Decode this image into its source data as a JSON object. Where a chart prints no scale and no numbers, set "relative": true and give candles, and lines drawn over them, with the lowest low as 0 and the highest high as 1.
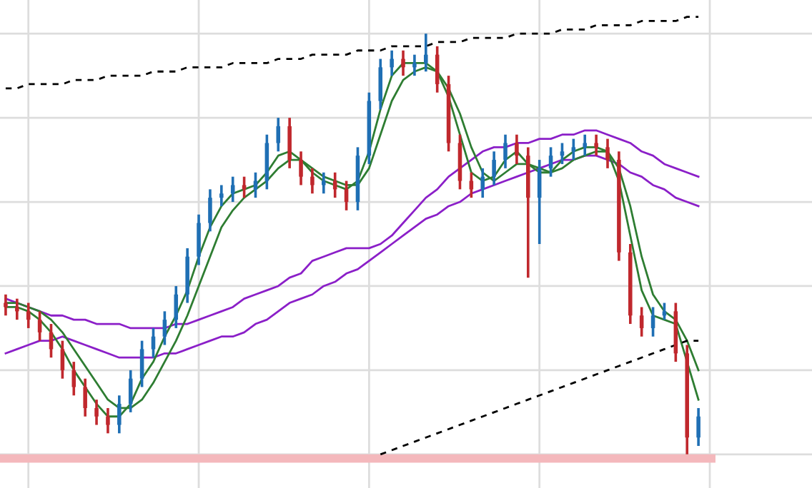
{
  "chart_data": {
    "type": "candlestick",
    "relative": true,
    "grid": true,
    "tick_labels": false,
    "categories": [
      null,
      null,
      null,
      null,
      null,
      null,
      null,
      null,
      null,
      null,
      null,
      null,
      null,
      null,
      null,
      null,
      null,
      null,
      null,
      null,
      null,
      null,
      null,
      null,
      null,
      null,
      null,
      null,
      null,
      null,
      null,
      null,
      null,
      null,
      null,
      null,
      null,
      null,
      null,
      null,
      null,
      null,
      null,
      null,
      null,
      null,
      null,
      null,
      null,
      null,
      null,
      null,
      null,
      null,
      null,
      null,
      null,
      null,
      null,
      null,
      null,
      null
    ],
    "ohlc": [
      [
        0.36,
        0.38,
        0.33,
        0.35
      ],
      [
        0.35,
        0.37,
        0.32,
        0.34
      ],
      [
        0.34,
        0.36,
        0.3,
        0.32
      ],
      [
        0.32,
        0.34,
        0.27,
        0.29
      ],
      [
        0.29,
        0.31,
        0.23,
        0.25
      ],
      [
        0.25,
        0.27,
        0.18,
        0.2
      ],
      [
        0.2,
        0.22,
        0.14,
        0.16
      ],
      [
        0.16,
        0.18,
        0.09,
        0.11
      ],
      [
        0.11,
        0.13,
        0.07,
        0.09
      ],
      [
        0.09,
        0.11,
        0.05,
        0.07
      ],
      [
        0.07,
        0.14,
        0.05,
        0.12
      ],
      [
        0.12,
        0.2,
        0.1,
        0.18
      ],
      [
        0.18,
        0.27,
        0.16,
        0.25
      ],
      [
        0.25,
        0.3,
        0.23,
        0.28
      ],
      [
        0.28,
        0.34,
        0.26,
        0.32
      ],
      [
        0.32,
        0.4,
        0.3,
        0.38
      ],
      [
        0.38,
        0.49,
        0.36,
        0.47
      ],
      [
        0.47,
        0.57,
        0.45,
        0.55
      ],
      [
        0.55,
        0.63,
        0.53,
        0.61
      ],
      [
        0.61,
        0.64,
        0.59,
        0.62
      ],
      [
        0.62,
        0.66,
        0.6,
        0.64
      ],
      [
        0.64,
        0.66,
        0.61,
        0.63
      ],
      [
        0.63,
        0.67,
        0.61,
        0.65
      ],
      [
        0.65,
        0.76,
        0.63,
        0.74
      ],
      [
        0.74,
        0.8,
        0.72,
        0.78
      ],
      [
        0.78,
        0.8,
        0.68,
        0.7
      ],
      [
        0.7,
        0.72,
        0.64,
        0.66
      ],
      [
        0.66,
        0.68,
        0.62,
        0.64
      ],
      [
        0.64,
        0.67,
        0.62,
        0.65
      ],
      [
        0.65,
        0.67,
        0.61,
        0.63
      ],
      [
        0.63,
        0.65,
        0.58,
        0.6
      ],
      [
        0.6,
        0.73,
        0.58,
        0.71
      ],
      [
        0.71,
        0.86,
        0.69,
        0.84
      ],
      [
        0.84,
        0.94,
        0.82,
        0.92
      ],
      [
        0.92,
        0.96,
        0.9,
        0.94
      ],
      [
        0.94,
        0.96,
        0.9,
        0.92
      ],
      [
        0.92,
        0.95,
        0.9,
        0.93
      ],
      [
        0.93,
        1.0,
        0.91,
        0.95
      ],
      [
        0.95,
        0.97,
        0.86,
        0.88
      ],
      [
        0.88,
        0.9,
        0.72,
        0.74
      ],
      [
        0.74,
        0.76,
        0.63,
        0.65
      ],
      [
        0.65,
        0.67,
        0.61,
        0.63
      ],
      [
        0.63,
        0.68,
        0.61,
        0.66
      ],
      [
        0.66,
        0.72,
        0.64,
        0.7
      ],
      [
        0.7,
        0.76,
        0.68,
        0.74
      ],
      [
        0.74,
        0.76,
        0.69,
        0.71
      ],
      [
        0.71,
        0.73,
        0.42,
        0.61
      ],
      [
        0.61,
        0.7,
        0.5,
        0.68
      ],
      [
        0.68,
        0.73,
        0.66,
        0.71
      ],
      [
        0.71,
        0.74,
        0.69,
        0.72
      ],
      [
        0.72,
        0.75,
        0.7,
        0.73
      ],
      [
        0.73,
        0.76,
        0.71,
        0.74
      ],
      [
        0.74,
        0.76,
        0.71,
        0.73
      ],
      [
        0.73,
        0.75,
        0.68,
        0.7
      ],
      [
        0.7,
        0.72,
        0.46,
        0.48
      ],
      [
        0.48,
        0.5,
        0.31,
        0.33
      ],
      [
        0.33,
        0.35,
        0.28,
        0.3
      ],
      [
        0.3,
        0.35,
        0.28,
        0.33
      ],
      [
        0.33,
        0.36,
        0.32,
        0.34
      ],
      [
        0.34,
        0.36,
        0.22,
        0.24
      ],
      [
        0.24,
        0.26,
        0.0,
        0.04
      ],
      [
        0.04,
        0.11,
        0.02,
        0.09
      ]
    ],
    "colors": [
      "#c0282d",
      "#c0282d",
      "#c0282d",
      "#c0282d",
      "#c0282d",
      "#c0282d",
      "#c0282d",
      "#c0282d",
      "#c0282d",
      "#c0282d",
      "#1f6fb4",
      "#1f6fb4",
      "#1f6fb4",
      "#1f6fb4",
      "#1f6fb4",
      "#1f6fb4",
      "#1f6fb4",
      "#1f6fb4",
      "#1f6fb4",
      "#1f6fb4",
      "#1f6fb4",
      "#c0282d",
      "#1f6fb4",
      "#1f6fb4",
      "#1f6fb4",
      "#c0282d",
      "#c0282d",
      "#c0282d",
      "#1f6fb4",
      "#c0282d",
      "#c0282d",
      "#1f6fb4",
      "#1f6fb4",
      "#1f6fb4",
      "#1f6fb4",
      "#c0282d",
      "#1f6fb4",
      "#1f6fb4",
      "#c0282d",
      "#c0282d",
      "#c0282d",
      "#c0282d",
      "#1f6fb4",
      "#1f6fb4",
      "#1f6fb4",
      "#c0282d",
      "#c0282d",
      "#1f6fb4",
      "#1f6fb4",
      "#1f6fb4",
      "#1f6fb4",
      "#1f6fb4",
      "#c0282d",
      "#c0282d",
      "#c0282d",
      "#c0282d",
      "#c0282d",
      "#1f6fb4",
      "#1f6fb4",
      "#c0282d",
      "#c0282d",
      "#1f6fb4"
    ],
    "series": [
      {
        "type": "line",
        "color": "#8b1fc8",
        "values": [
          0.37,
          0.36,
          0.35,
          0.34,
          0.33,
          0.33,
          0.32,
          0.32,
          0.31,
          0.31,
          0.31,
          0.3,
          0.3,
          0.3,
          0.3,
          0.31,
          0.31,
          0.32,
          0.33,
          0.34,
          0.35,
          0.37,
          0.38,
          0.39,
          0.4,
          0.42,
          0.43,
          0.46,
          0.47,
          0.48,
          0.49,
          0.49,
          0.49,
          0.5,
          0.52,
          0.55,
          0.58,
          0.61,
          0.63,
          0.66,
          0.68,
          0.7,
          0.72,
          0.73,
          0.73,
          0.74,
          0.74,
          0.75,
          0.75,
          0.76,
          0.76,
          0.77,
          0.77,
          0.76,
          0.75,
          0.74,
          0.72,
          0.71,
          0.69,
          0.68,
          0.67,
          0.66
        ]
      },
      {
        "type": "line",
        "color": "#8b1fc8",
        "values": [
          0.24,
          0.25,
          0.26,
          0.27,
          0.27,
          0.28,
          0.27,
          0.26,
          0.25,
          0.24,
          0.23,
          0.23,
          0.23,
          0.23,
          0.24,
          0.24,
          0.25,
          0.26,
          0.27,
          0.28,
          0.28,
          0.29,
          0.31,
          0.32,
          0.34,
          0.36,
          0.37,
          0.38,
          0.4,
          0.41,
          0.43,
          0.44,
          0.46,
          0.48,
          0.5,
          0.52,
          0.54,
          0.56,
          0.57,
          0.59,
          0.6,
          0.62,
          0.63,
          0.64,
          0.65,
          0.66,
          0.67,
          0.68,
          0.69,
          0.7,
          0.7,
          0.71,
          0.71,
          0.7,
          0.69,
          0.67,
          0.66,
          0.64,
          0.63,
          0.61,
          0.6,
          0.59
        ]
      },
      {
        "type": "line",
        "color": "#2e7d32",
        "values": [
          0.35,
          0.35,
          0.34,
          0.32,
          0.29,
          0.25,
          0.2,
          0.16,
          0.12,
          0.09,
          0.09,
          0.12,
          0.18,
          0.22,
          0.28,
          0.33,
          0.39,
          0.47,
          0.54,
          0.59,
          0.62,
          0.63,
          0.64,
          0.67,
          0.71,
          0.72,
          0.7,
          0.67,
          0.65,
          0.64,
          0.63,
          0.65,
          0.72,
          0.82,
          0.9,
          0.93,
          0.93,
          0.93,
          0.91,
          0.85,
          0.76,
          0.67,
          0.65,
          0.66,
          0.7,
          0.72,
          0.69,
          0.67,
          0.67,
          0.7,
          0.72,
          0.73,
          0.73,
          0.72,
          0.65,
          0.52,
          0.39,
          0.33,
          0.32,
          0.31,
          0.22,
          0.13
        ]
      },
      {
        "type": "line",
        "color": "#2e7d32",
        "values": [
          0.36,
          0.36,
          0.35,
          0.34,
          0.32,
          0.29,
          0.25,
          0.21,
          0.17,
          0.13,
          0.11,
          0.11,
          0.13,
          0.17,
          0.22,
          0.27,
          0.33,
          0.4,
          0.47,
          0.54,
          0.58,
          0.61,
          0.63,
          0.65,
          0.68,
          0.7,
          0.7,
          0.68,
          0.66,
          0.65,
          0.64,
          0.64,
          0.68,
          0.76,
          0.84,
          0.89,
          0.91,
          0.92,
          0.91,
          0.87,
          0.81,
          0.73,
          0.67,
          0.65,
          0.67,
          0.69,
          0.69,
          0.68,
          0.67,
          0.68,
          0.7,
          0.71,
          0.72,
          0.72,
          0.68,
          0.59,
          0.47,
          0.38,
          0.34,
          0.32,
          0.27,
          0.2
        ]
      },
      {
        "type": "line",
        "color": "#000000",
        "line_style": "dashed",
        "values": [
          0.87,
          0.87,
          0.88,
          0.88,
          0.88,
          0.88,
          0.89,
          0.89,
          0.89,
          0.9,
          0.9,
          0.9,
          0.9,
          0.91,
          0.91,
          0.91,
          0.92,
          0.92,
          0.92,
          0.92,
          0.93,
          0.93,
          0.93,
          0.93,
          0.94,
          0.94,
          0.94,
          0.95,
          0.95,
          0.95,
          0.95,
          0.96,
          0.96,
          0.96,
          0.97,
          0.97,
          0.97,
          0.97,
          0.98,
          0.98,
          0.98,
          0.99,
          0.99,
          0.99,
          0.99,
          1.0,
          1.0,
          1.0,
          1.0,
          1.01,
          1.01,
          1.01,
          1.02,
          1.02,
          1.02,
          1.02,
          1.03,
          1.03,
          1.03,
          1.03,
          1.04,
          1.04
        ]
      },
      {
        "type": "line",
        "color": "#000000",
        "line_style": "dashed",
        "values": [
          null,
          null,
          null,
          null,
          null,
          null,
          null,
          null,
          null,
          null,
          null,
          null,
          null,
          null,
          null,
          null,
          null,
          null,
          null,
          null,
          null,
          null,
          null,
          null,
          null,
          null,
          null,
          null,
          null,
          null,
          null,
          null,
          null,
          0.0,
          0.01,
          0.02,
          0.03,
          0.04,
          0.05,
          0.06,
          0.07,
          0.08,
          0.09,
          0.1,
          0.11,
          0.12,
          0.13,
          0.14,
          0.15,
          0.16,
          0.17,
          0.18,
          0.19,
          0.2,
          0.21,
          0.22,
          0.23,
          0.24,
          0.25,
          0.26,
          0.27,
          0.27
        ]
      }
    ],
    "bands": [
      {
        "axis": "y",
        "from": -0.02,
        "to": 0.0,
        "color": "#f4b8bc"
      }
    ]
  }
}
